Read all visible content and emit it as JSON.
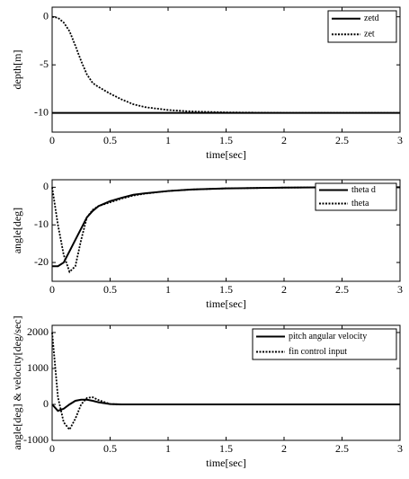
{
  "chart_data": [
    {
      "type": "line",
      "x_label": "time[sec]",
      "y_label": "depth[m]",
      "x": [
        0,
        0.05,
        0.1,
        0.15,
        0.2,
        0.25,
        0.3,
        0.35,
        0.4,
        0.5,
        0.6,
        0.7,
        0.8,
        1,
        1.2,
        1.5,
        2,
        2.5,
        3
      ],
      "series": [
        {
          "name": "zetd",
          "color": "#000000",
          "style": "solid",
          "values": [
            -10,
            -10,
            -10,
            -10,
            -10,
            -10,
            -10,
            -10,
            -10,
            -10,
            -10,
            -10,
            -10,
            -10,
            -10,
            -10,
            -10,
            -10,
            -10
          ]
        },
        {
          "name": "zet",
          "color": "#000000",
          "style": "dotted",
          "values": [
            0,
            -0.1,
            -0.6,
            -1.5,
            -3,
            -4.6,
            -6,
            -6.9,
            -7.3,
            -8,
            -8.6,
            -9.1,
            -9.4,
            -9.7,
            -9.85,
            -9.95,
            -10,
            -10,
            -10
          ]
        }
      ],
      "xlim": [
        0,
        3
      ],
      "xticks": [
        0,
        0.5,
        1,
        1.5,
        2,
        2.5,
        3
      ],
      "ylim": [
        -12,
        1
      ],
      "yticks": [
        -10,
        -5,
        0
      ],
      "legend": "top-right"
    },
    {
      "type": "line",
      "x_label": "time[sec]",
      "y_label": "angle[deg]",
      "x": [
        0,
        0.05,
        0.1,
        0.15,
        0.2,
        0.25,
        0.3,
        0.35,
        0.4,
        0.5,
        0.6,
        0.7,
        0.8,
        1,
        1.2,
        1.5,
        2,
        2.5,
        3
      ],
      "series": [
        {
          "name": "theta d",
          "color": "#000000",
          "style": "solid",
          "values": [
            -21,
            -21,
            -20,
            -17,
            -14,
            -11,
            -8,
            -6.3,
            -5,
            -3.7,
            -2.8,
            -2,
            -1.6,
            -1,
            -0.6,
            -0.3,
            -0.1,
            0,
            0
          ]
        },
        {
          "name": "theta",
          "color": "#000000",
          "style": "dotted",
          "values": [
            0,
            -10,
            -18,
            -22.5,
            -21,
            -14,
            -8,
            -6,
            -5,
            -4,
            -3,
            -2.2,
            -1.7,
            -1,
            -0.6,
            -0.3,
            -0.1,
            0,
            0
          ]
        }
      ],
      "xlim": [
        0,
        3
      ],
      "xticks": [
        0,
        0.5,
        1,
        1.5,
        2,
        2.5,
        3
      ],
      "ylim": [
        -25,
        2
      ],
      "yticks": [
        -20,
        -10,
        0
      ],
      "legend": "top-right"
    },
    {
      "type": "line",
      "x_label": "time[sec]",
      "y_label": "angle[deg] & velocity[deg/sec]",
      "x": [
        0,
        0.05,
        0.1,
        0.15,
        0.2,
        0.25,
        0.3,
        0.35,
        0.4,
        0.5,
        0.6,
        0.7,
        0.8,
        1,
        1.2,
        1.5,
        2,
        2.5,
        3
      ],
      "series": [
        {
          "name": "pitch angular velocity",
          "color": "#000000",
          "style": "solid",
          "values": [
            0,
            -180,
            -120,
            0,
            100,
            130,
            130,
            100,
            60,
            10,
            0,
            0,
            0,
            0,
            0,
            0,
            0,
            0,
            0
          ]
        },
        {
          "name": "fin control input",
          "color": "#000000",
          "style": "dotted",
          "values": [
            2000,
            200,
            -500,
            -700,
            -400,
            0,
            180,
            200,
            120,
            10,
            0,
            0,
            0,
            0,
            0,
            0,
            0,
            0,
            0
          ]
        }
      ],
      "xlim": [
        0,
        3
      ],
      "xticks": [
        0,
        0.5,
        1,
        1.5,
        2,
        2.5,
        3
      ],
      "ylim": [
        -1000,
        2200
      ],
      "yticks": [
        -1000,
        0,
        1000,
        2000
      ],
      "legend": "top-right"
    }
  ]
}
